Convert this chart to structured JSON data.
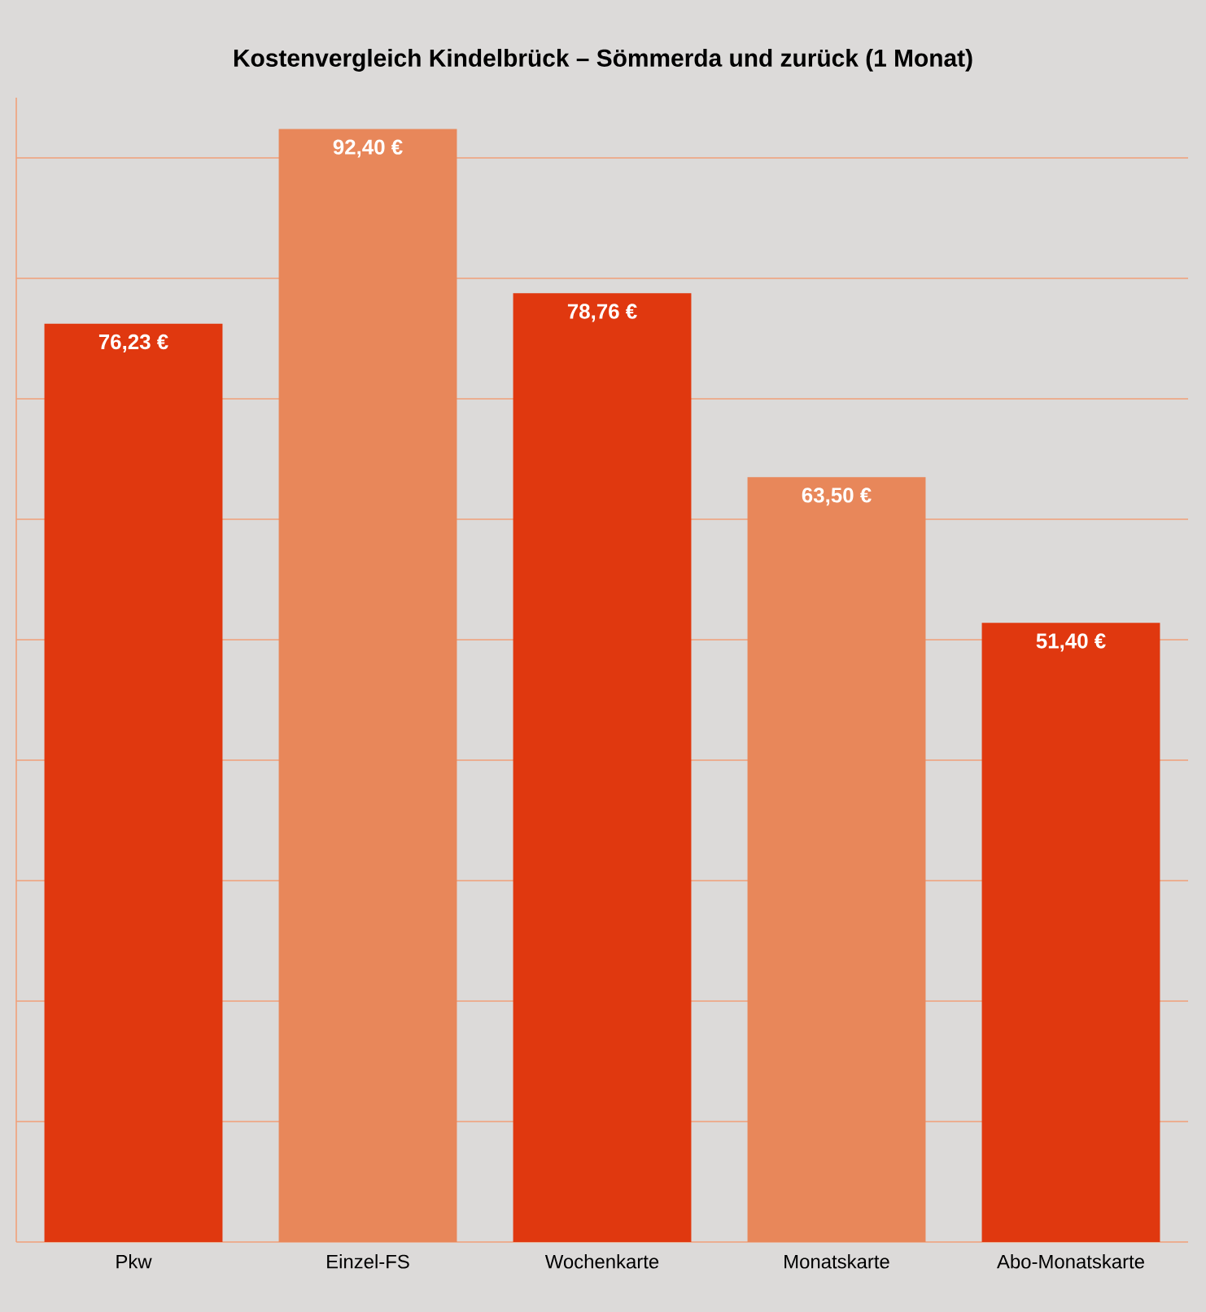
{
  "chart_data": {
    "type": "bar",
    "title": "Kostenvergleich Kindelbrück – Sömmerda und zurück (1 Monat)",
    "categories": [
      "Pkw",
      "Einzel-FS",
      "Wochenkarte",
      "Monatskarte",
      "Abo-Monatskarte"
    ],
    "values": [
      76.23,
      92.4,
      78.76,
      63.5,
      51.4
    ],
    "colors": [
      "#e0380f",
      "#e8875a",
      "#e0380f",
      "#e8875a",
      "#e0380f"
    ],
    "value_labels": [
      "76,23 €",
      "92,40 €",
      "78,76 €",
      "63,50 €",
      "51,40 €"
    ],
    "ylim": [
      0,
      95
    ],
    "yticks": [
      {
        "value": 0,
        "label": null
      },
      {
        "value": 10,
        "label": null
      },
      {
        "value": 20,
        "label": null
      },
      {
        "value": 30,
        "label": null
      },
      {
        "value": 40,
        "label": null
      },
      {
        "value": 50,
        "label": null
      },
      {
        "value": 60,
        "label": null
      },
      {
        "value": 70,
        "label": null
      },
      {
        "value": 80,
        "label": null
      },
      {
        "value": 90,
        "label": null
      }
    ],
    "grid": "y",
    "tick_labels": "x"
  }
}
